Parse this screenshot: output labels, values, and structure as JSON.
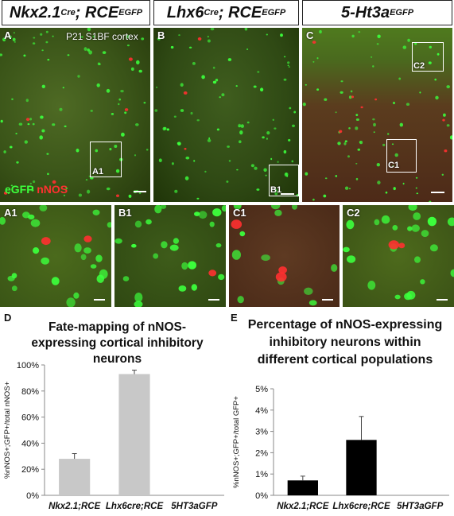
{
  "headers": {
    "col1": {
      "base": "Nkx2.1",
      "sup1": "Cre",
      "mid": "; RCE",
      "sup2": "EGFP"
    },
    "col2": {
      "base": "Lhx6",
      "sup1": "Cre",
      "mid": "; RCE",
      "sup2": "EGFP"
    },
    "col3": {
      "base": "5-Ht3a",
      "sup2": "EGFP"
    }
  },
  "panels": {
    "A": {
      "label": "A",
      "region": "P21 S1BF cortex",
      "box": "A1",
      "stain_green": "eGFP",
      "stain_red": " nNOS"
    },
    "B": {
      "label": "B",
      "box": "B1"
    },
    "C": {
      "label": "C",
      "box1": "C1",
      "box2": "C2"
    },
    "A1": {
      "label": "A1"
    },
    "B1": {
      "label": "B1"
    },
    "C1": {
      "label": "C1"
    },
    "C2": {
      "label": "C2"
    }
  },
  "colors": {
    "gfp_green": "#3cff3c",
    "nnos_red": "#ff3030",
    "bar_grey": "#c8c8c8",
    "bar_black": "#000000"
  },
  "chart_data": [
    {
      "panel": "D",
      "type": "bar",
      "title": "Fate-mapping of nNOS-expressing cortical inhibitory neurons",
      "title_lines": [
        "Fate-mapping of nNOS-",
        "expressing  cortical inhibitory",
        "neurons"
      ],
      "ylabel": "%nNOS+;GFP+/total nNOS+",
      "categories": [
        "Nkx2.1;RCE",
        "Lhx6cre;RCE",
        "5HT3aGFP"
      ],
      "values": [
        28,
        93,
        0
      ],
      "errors": [
        4,
        3,
        0
      ],
      "ylim": [
        0,
        100
      ],
      "yticks": [
        "0%",
        "20%",
        "40%",
        "60%",
        "80%",
        "100%"
      ],
      "grid": false
    },
    {
      "panel": "E",
      "type": "bar",
      "title": "Percentage of nNOS-expressing inhibitory neurons within different cortical populations",
      "title_lines": [
        "Percentage of nNOS-expressing",
        "inhibitory neurons within",
        "different cortical populations"
      ],
      "ylabel": "%nNOS+;GFP+/total GFP+",
      "categories": [
        "Nkx2.1;RCE",
        "Lhx6cre;RCE",
        "5HT3aGFP"
      ],
      "values": [
        0.7,
        2.6,
        0
      ],
      "errors": [
        0.2,
        1.1,
        0
      ],
      "ylim": [
        0,
        5
      ],
      "yticks": [
        "0%",
        "1%",
        "2%",
        "3%",
        "4%",
        "5%"
      ],
      "grid": false
    }
  ]
}
